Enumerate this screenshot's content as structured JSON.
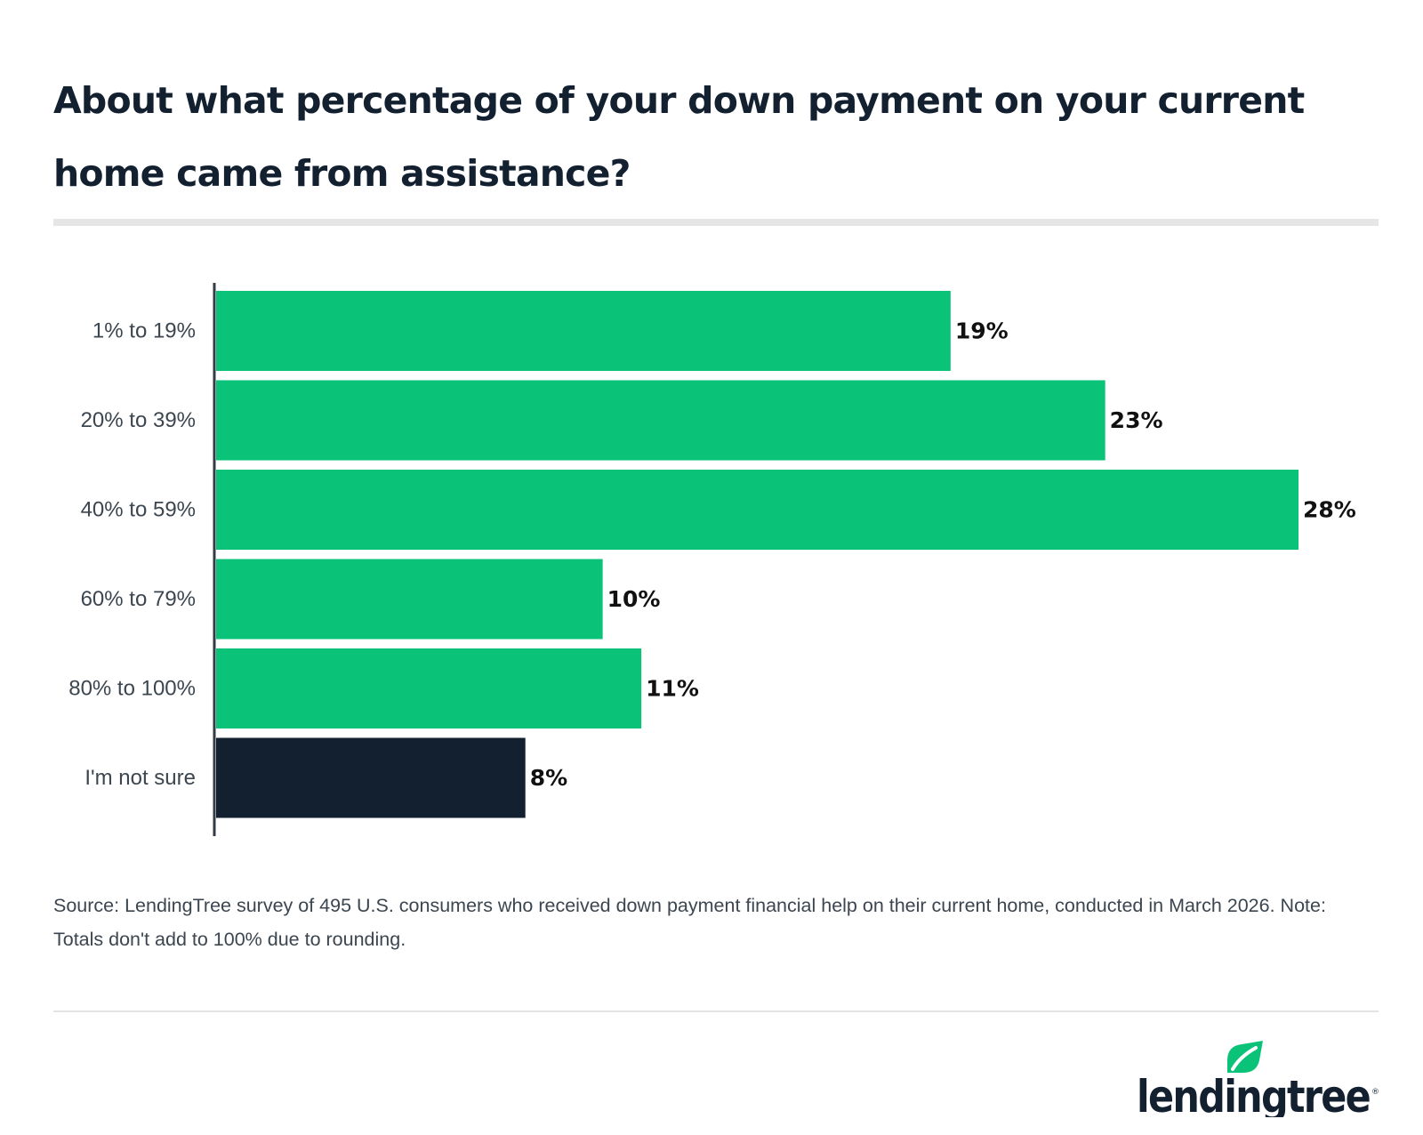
{
  "title": "About what percentage of your down payment on your current home came from assistance?",
  "source": "Source: LendingTree survey of 495 U.S. consumers who received down payment financial help on their current home, conducted in March 2026. Note: Totals don't add to 100% due to rounding.",
  "brand": {
    "name": "lendingtree",
    "logo_icon": "leaf-icon",
    "colors": {
      "green": "#0bc279",
      "navy": "#132030"
    }
  },
  "chart_data": {
    "type": "bar",
    "orientation": "horizontal",
    "title": "About what percentage of your down payment on your current home came from assistance?",
    "xlabel": "",
    "ylabel": "",
    "categories": [
      "1% to 19%",
      "20% to 39%",
      "40% to 59%",
      "60% to 79%",
      "80% to 100%",
      "I'm not sure"
    ],
    "values": [
      19,
      23,
      28,
      10,
      11,
      8
    ],
    "value_labels": [
      "19%",
      "23%",
      "28%",
      "10%",
      "11%",
      "8%"
    ],
    "colors": [
      "#0bc279",
      "#0bc279",
      "#0bc279",
      "#0bc279",
      "#0bc279",
      "#132030"
    ],
    "xlim": [
      0,
      28
    ],
    "grid": false,
    "legend": "none"
  }
}
